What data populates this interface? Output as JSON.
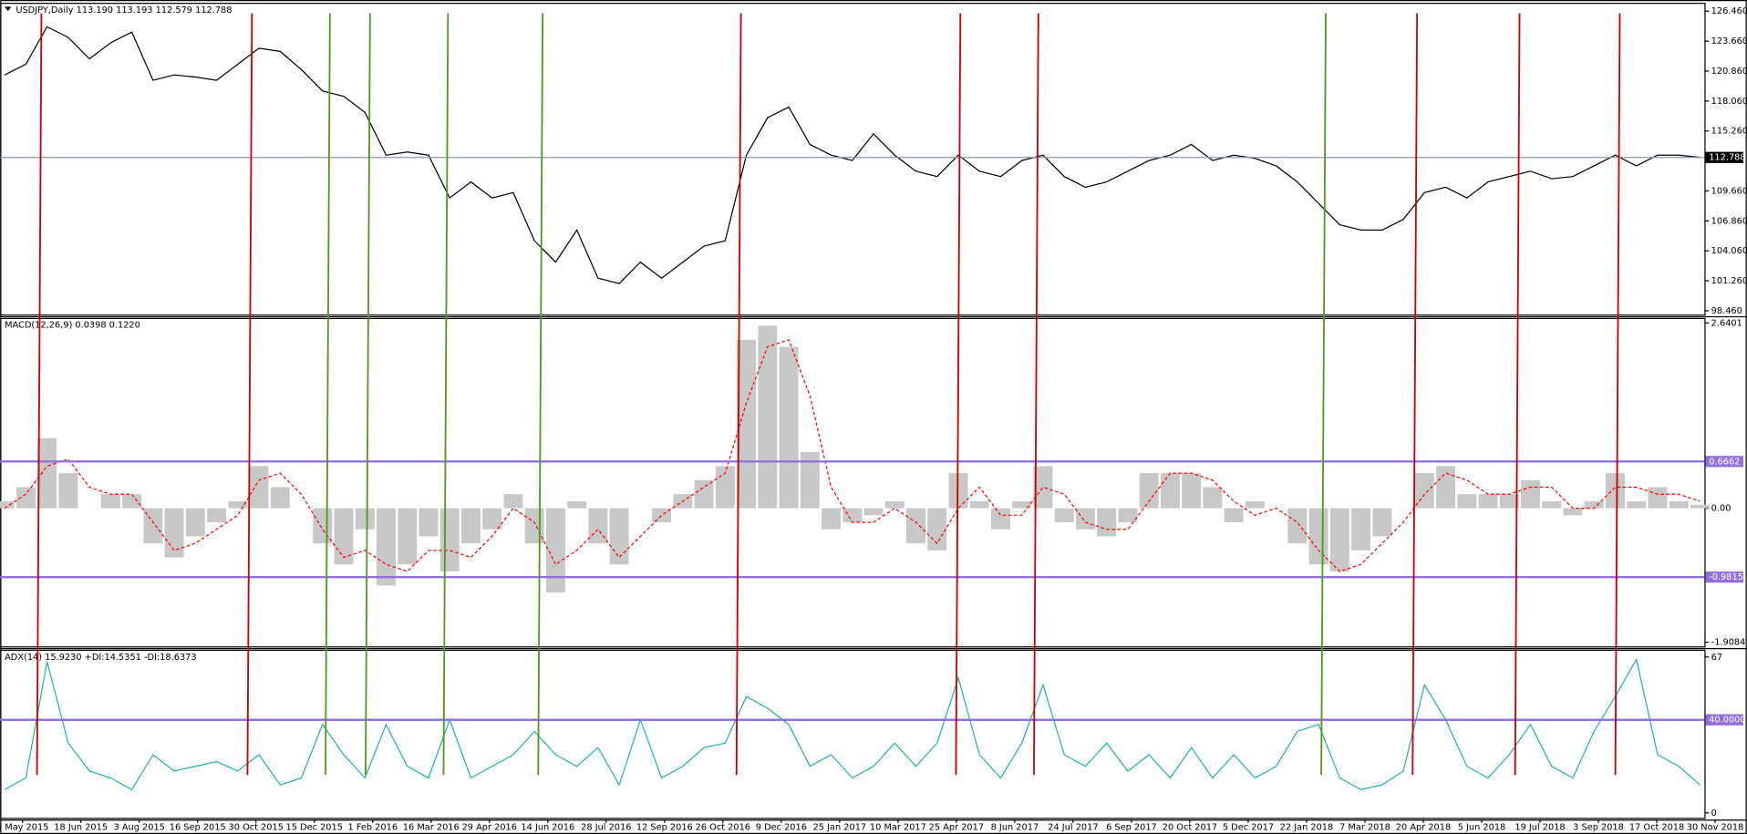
{
  "chart_data": [
    {
      "type": "line",
      "title": "USDJPY,Daily  113.190 113.193 112.579 112.788",
      "ylim": [
        98.05,
        127.19
      ],
      "yticks": [
        {
          "value": 126.46,
          "label": "126.460"
        },
        {
          "value": 123.66,
          "label": "123.660"
        },
        {
          "value": 120.86,
          "label": "120.860"
        },
        {
          "value": 118.06,
          "label": "118.060"
        },
        {
          "value": 115.26,
          "label": "115.260"
        },
        {
          "value": 109.66,
          "label": "109.660"
        },
        {
          "value": 106.86,
          "label": "106.860"
        },
        {
          "value": 104.06,
          "label": "104.060"
        },
        {
          "value": 101.26,
          "label": "101.260"
        },
        {
          "value": 98.46,
          "label": "98.460"
        }
      ],
      "current_price": 112.788,
      "series": [
        {
          "color": "#000000",
          "values": [
            120.5,
            121.5,
            125,
            124,
            122,
            123.5,
            124.5,
            120,
            120.5,
            120.3,
            120,
            121.5,
            123,
            122.7,
            121,
            119,
            118.5,
            117,
            113,
            113.3,
            113,
            109,
            110.5,
            109,
            109.5,
            105,
            103,
            106,
            101.5,
            101,
            103,
            101.5,
            103,
            104.5,
            105,
            113,
            116.5,
            117.5,
            114,
            113,
            112.5,
            115,
            113,
            111.5,
            111,
            113,
            111.5,
            111,
            112.5,
            113,
            111,
            110,
            110.5,
            111.5,
            112.5,
            113,
            114,
            112.5,
            113,
            112.7,
            112,
            110.5,
            108.5,
            106.5,
            106,
            106,
            107,
            109.5,
            110,
            109,
            110.5,
            111,
            111.5,
            110.8,
            111,
            112,
            113,
            112,
            113,
            113,
            112.8
          ]
        }
      ]
    },
    {
      "type": "bar",
      "title": "MACD(12,26,9) 0.0398 0.1220",
      "ylim": [
        -1.976,
        2.704
      ],
      "yticks": [
        2.6401,
        {
          "value": 0,
          "label": "0.00"
        },
        -1.9084
      ],
      "levels": [
        0.6662,
        -0.9815
      ],
      "level_color": "#9370db",
      "series": [
        {
          "kind": "bar",
          "color": "#c8c8c8",
          "values": [
            0.1,
            0.3,
            1.0,
            0.5,
            0.0,
            0.2,
            0.2,
            -0.5,
            -0.7,
            -0.4,
            -0.2,
            0.1,
            0.6,
            0.3,
            0.0,
            -0.5,
            -0.8,
            -0.3,
            -1.1,
            -0.8,
            -0.4,
            -0.9,
            -0.5,
            -0.3,
            0.2,
            -0.5,
            -1.2,
            0.1,
            -0.5,
            -0.8,
            0.0,
            -0.2,
            0.2,
            0.4,
            0.6,
            2.4,
            2.6,
            2.3,
            0.8,
            -0.3,
            -0.2,
            -0.1,
            0.1,
            -0.5,
            -0.6,
            0.5,
            0.1,
            -0.3,
            0.1,
            0.6,
            -0.2,
            -0.3,
            -0.4,
            -0.2,
            0.5,
            0.5,
            0.5,
            0.3,
            -0.2,
            0.1,
            0.0,
            -0.5,
            -0.8,
            -0.9,
            -0.6,
            -0.4,
            0.0,
            0.5,
            0.6,
            0.2,
            0.2,
            0.2,
            0.4,
            0.1,
            -0.1,
            0.1,
            0.5,
            0.1,
            0.3,
            0.1,
            0.05
          ]
        },
        {
          "kind": "line",
          "color": "#ff0000",
          "values": [
            0.0,
            0.2,
            0.6,
            0.7,
            0.3,
            0.2,
            0.2,
            -0.2,
            -0.6,
            -0.5,
            -0.3,
            -0.1,
            0.4,
            0.5,
            0.2,
            -0.3,
            -0.7,
            -0.6,
            -0.8,
            -0.9,
            -0.6,
            -0.6,
            -0.7,
            -0.4,
            0.0,
            -0.2,
            -0.8,
            -0.6,
            -0.3,
            -0.7,
            -0.4,
            -0.1,
            0.1,
            0.3,
            0.5,
            1.5,
            2.3,
            2.4,
            1.6,
            0.3,
            -0.2,
            -0.2,
            0.0,
            -0.2,
            -0.5,
            0.0,
            0.3,
            -0.1,
            -0.1,
            0.3,
            0.2,
            -0.2,
            -0.3,
            -0.3,
            0.1,
            0.5,
            0.5,
            0.4,
            0.1,
            -0.1,
            0.0,
            -0.2,
            -0.6,
            -0.9,
            -0.8,
            -0.5,
            -0.2,
            0.2,
            0.5,
            0.4,
            0.2,
            0.2,
            0.3,
            0.3,
            0.0,
            0.0,
            0.3,
            0.3,
            0.2,
            0.2,
            0.1
          ]
        }
      ]
    },
    {
      "type": "line",
      "title": "ADX(14) 15.9230 +DI:14.5351 -DI:18.6373",
      "ylim": [
        -2.4,
        69.9
      ],
      "yticks": [
        67,
        0
      ],
      "levels": [
        {
          "value": 40,
          "label": "40.0000"
        }
      ],
      "level_color": "#9370db",
      "series": [
        {
          "color": "#20b2aa",
          "values": [
            10,
            15,
            65,
            30,
            18,
            15,
            10,
            25,
            18,
            20,
            22,
            18,
            25,
            12,
            15,
            38,
            25,
            15,
            38,
            20,
            15,
            40,
            15,
            20,
            25,
            35,
            25,
            20,
            28,
            12,
            40,
            15,
            20,
            28,
            30,
            50,
            45,
            38,
            20,
            25,
            15,
            20,
            30,
            20,
            30,
            58,
            25,
            15,
            30,
            55,
            25,
            20,
            30,
            18,
            25,
            15,
            28,
            15,
            25,
            15,
            20,
            35,
            38,
            15,
            10,
            12,
            18,
            55,
            40,
            20,
            15,
            25,
            38,
            20,
            15,
            35,
            50,
            66,
            25,
            20,
            12
          ]
        }
      ]
    }
  ],
  "time_axis": {
    "labels": [
      "5 May 2015",
      "18 Jun 2015",
      "3 Aug 2015",
      "16 Sep 2015",
      "30 Oct 2015",
      "15 Dec 2015",
      "1 Feb 2016",
      "16 Mar 2016",
      "29 Apr 2016",
      "14 Jun 2016",
      "28 Jul 2016",
      "12 Sep 2016",
      "26 Oct 2016",
      "9 Dec 2016",
      "25 Jan 2017",
      "10 Mar 2017",
      "25 Apr 2017",
      "8 Jun 2017",
      "24 Jul 2017",
      "6 Sep 2017",
      "20 Oct 2017",
      "5 Dec 2017",
      "22 Jan 2018",
      "7 Mar 2018",
      "20 Apr 2018",
      "5 Jun 2018",
      "19 Jul 2018",
      "3 Sep 2018",
      "17 Oct 2018",
      "30 Nov 2018"
    ]
  }
}
